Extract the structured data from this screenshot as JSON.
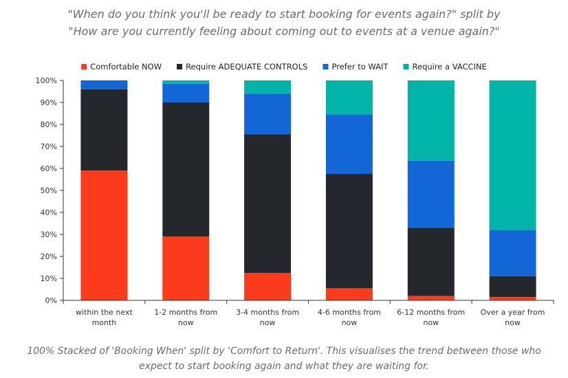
{
  "chart_data": {
    "type": "bar",
    "stacked": true,
    "title_line1": "\"When do you think you'll be ready to start booking for events again?\" split by",
    "title_line2": "\"How are you currently feeling about coming out to events at a venue again?\"",
    "caption": "100% Stacked of 'Booking When' split by 'Comfort to Return'. This visualises the trend between those who expect to start booking again and what they are waiting for.",
    "categories": [
      [
        "within the next",
        "month"
      ],
      [
        "1-2 months from",
        "now"
      ],
      [
        "3-4 months from",
        "now"
      ],
      [
        "4-6 months from",
        "now"
      ],
      [
        "6-12 months from",
        "now"
      ],
      [
        "Over a year from",
        "now"
      ]
    ],
    "series": [
      {
        "name": "Comfortable NOW",
        "color": "#fc3a1c",
        "values": [
          59,
          29,
          12.5,
          5.5,
          2,
          1.5
        ]
      },
      {
        "name": "Require ADEQUATE CONTROLS",
        "color": "#24282d",
        "values": [
          37,
          61,
          63,
          52,
          31,
          9.5
        ]
      },
      {
        "name": "Prefer to WAIT",
        "color": "#1266d6",
        "values": [
          4,
          8.5,
          18.5,
          27,
          30.5,
          21
        ]
      },
      {
        "name": "Require a VACCINE",
        "color": "#00b5a8",
        "values": [
          0,
          1.5,
          6,
          15.5,
          36.5,
          68
        ]
      }
    ],
    "yticks": [
      "0%",
      "10%",
      "20%",
      "30%",
      "40%",
      "50%",
      "60%",
      "70%",
      "80%",
      "90%",
      "100%"
    ],
    "ylim": [
      0,
      100
    ],
    "legend_position": "top",
    "grid": false
  }
}
